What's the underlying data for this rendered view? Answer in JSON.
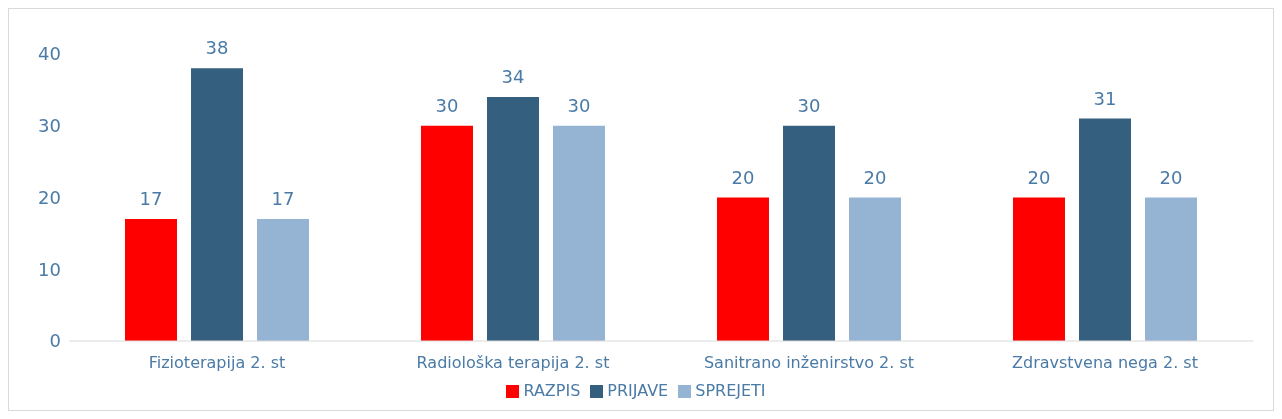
{
  "chart_data": {
    "type": "bar",
    "categories": [
      "Fizioterapija 2. st",
      "Radiološka terapija 2. st",
      "Sanitrano inženirstvo 2. st",
      "Zdravstvena nega 2. st"
    ],
    "series": [
      {
        "name": "RAZPIS",
        "color": "#ff0000",
        "values": [
          17,
          30,
          20,
          20
        ]
      },
      {
        "name": "PRIJAVE",
        "color": "#355f7f",
        "values": [
          38,
          34,
          30,
          31
        ]
      },
      {
        "name": "SPREJETI",
        "color": "#95b3d3",
        "values": [
          17,
          30,
          20,
          20
        ]
      }
    ],
    "ylim": [
      0,
      40
    ],
    "yticks": [
      0,
      10,
      20,
      30,
      40
    ],
    "grid": false,
    "legend": "bottom",
    "data_labels": true
  }
}
